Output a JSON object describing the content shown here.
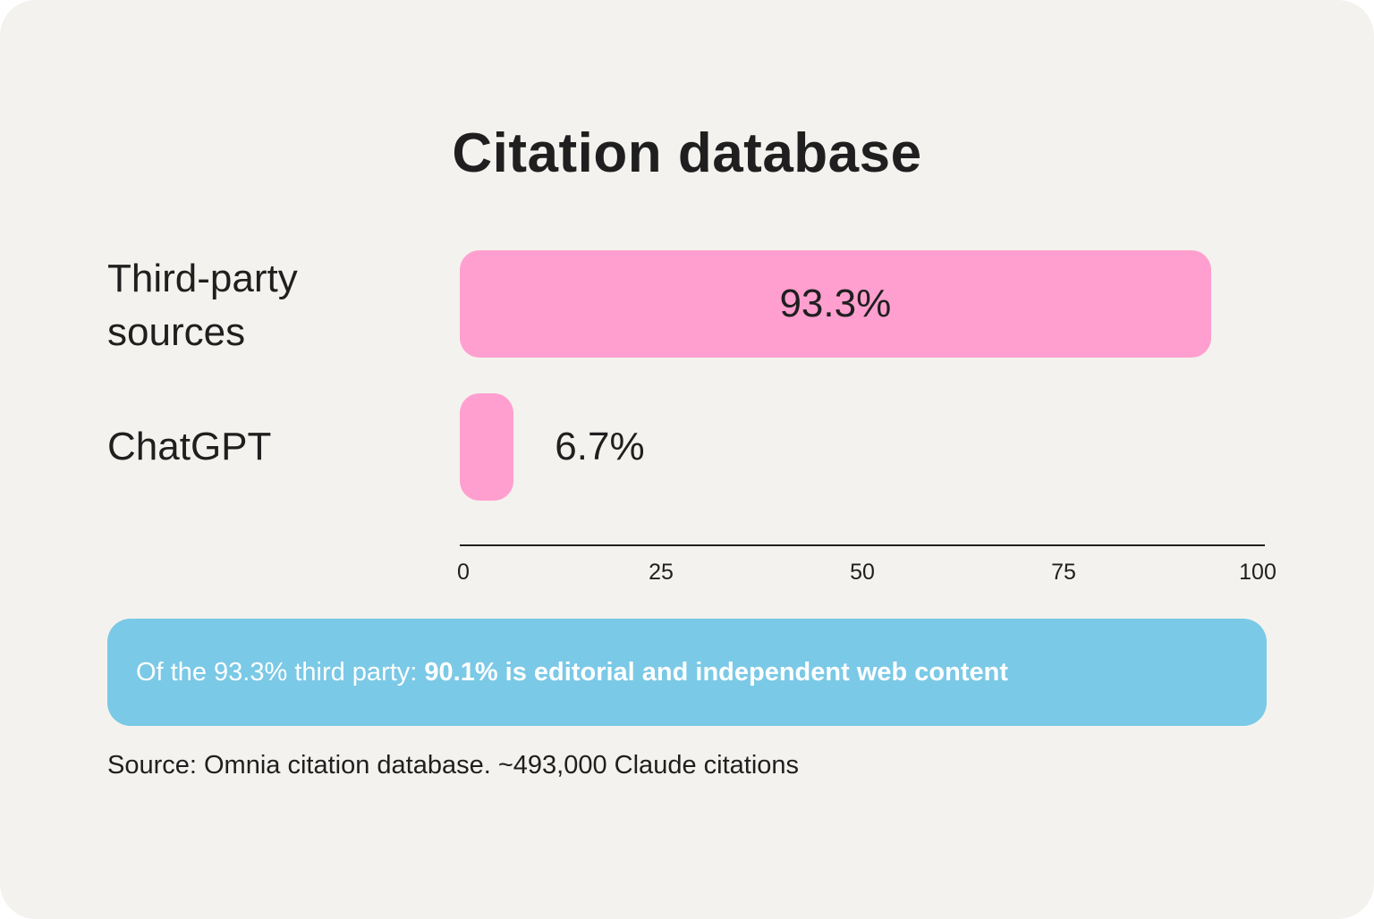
{
  "chart_data": {
    "type": "bar",
    "orientation": "horizontal",
    "title": "Citation database",
    "categories": [
      "Third-party sources",
      "ChatGPT"
    ],
    "category_lines": [
      [
        "Third-party",
        "sources"
      ],
      [
        "ChatGPT"
      ]
    ],
    "values": [
      93.3,
      6.7
    ],
    "value_labels": [
      "93.3%",
      "6.7%"
    ],
    "xlim": [
      0,
      100
    ],
    "xticks": [
      "0",
      "25",
      "50",
      "75",
      "100"
    ],
    "bar_color": "#ff9fcf",
    "grid": false,
    "legend": "none"
  },
  "note": {
    "prefix": "Of the 93.3% third party: ",
    "highlight": "90.1% is editorial and independent web content",
    "background": "#7ac9e6"
  },
  "source": "Source: Omnia citation database. ~493,000 Claude citations"
}
